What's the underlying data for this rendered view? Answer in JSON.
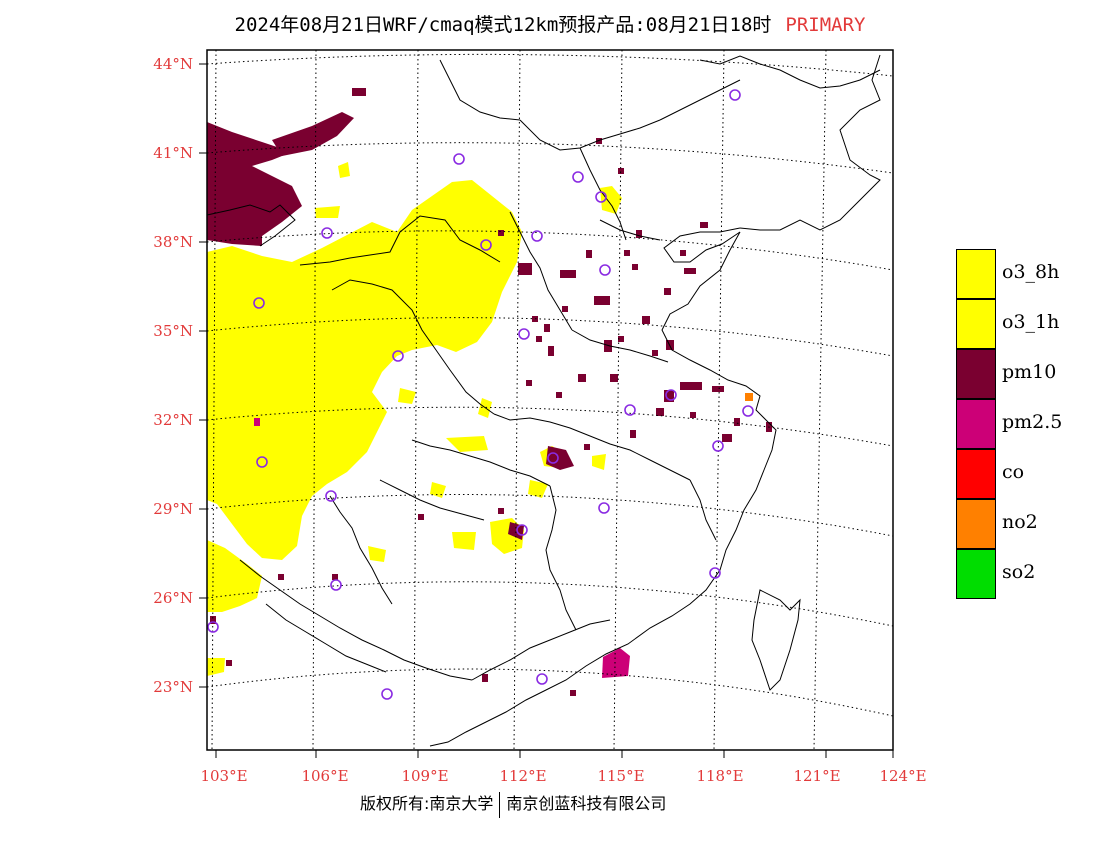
{
  "header": {
    "title": "2024年08月21日WRF/cmaq模式12km预报产品:08月21日18时",
    "tag": "PRIMARY"
  },
  "map": {
    "lat_labels": [
      "44°N",
      "41°N",
      "38°N",
      "35°N",
      "32°N",
      "29°N",
      "26°N",
      "23°N"
    ],
    "lon_labels": [
      "103°E",
      "106°E",
      "109°E",
      "112°E",
      "115°E",
      "118°E",
      "121°E",
      "124°E"
    ],
    "colors": {
      "o3_8h": "#ffff00",
      "o3_1h": "#ffff00",
      "pm10": "#7a0030",
      "pm25": "#cc0077",
      "co": "#ff0000",
      "no2": "#ff8000",
      "so2": "#00dd00",
      "station": "#8a2be2",
      "axis_label": "#e23a3a"
    }
  },
  "legend": {
    "items": [
      {
        "label": "o3_8h",
        "color": "#ffff00"
      },
      {
        "label": "o3_1h",
        "color": "#ffff00"
      },
      {
        "label": "pm10",
        "color": "#7a0030"
      },
      {
        "label": "pm2.5",
        "color": "#cc0077"
      },
      {
        "label": "co",
        "color": "#ff0000"
      },
      {
        "label": "no2",
        "color": "#ff8000"
      },
      {
        "label": "so2",
        "color": "#00dd00"
      }
    ]
  },
  "footer": {
    "left": "版权所有:南京大学",
    "right": "南京创蓝科技有限公司"
  }
}
